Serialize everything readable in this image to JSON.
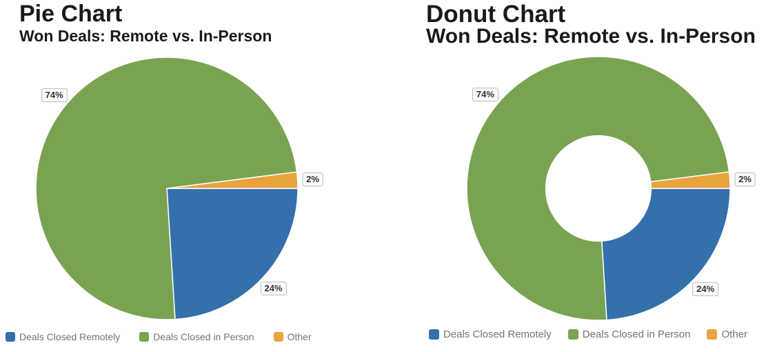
{
  "chart_data": [
    {
      "type": "pie",
      "title": "Pie Chart",
      "subtitle": "Won Deals: Remote vs. In-Person",
      "categories": [
        "Deals Closed Remotely",
        "Deals Closed in Person",
        "Other"
      ],
      "values": [
        24,
        74,
        2
      ],
      "data_labels": [
        "24%",
        "74%",
        "2%"
      ],
      "colors": [
        "#3370ac",
        "#79a351",
        "#e8a33d"
      ],
      "slice_border_color": "#ffffff",
      "start_angle_deg": 90,
      "inner_radius_ratio": 0,
      "unit": "%",
      "legend_position": "bottom"
    },
    {
      "type": "donut",
      "title": "Donut Chart",
      "subtitle": "Won Deals: Remote vs. In-Person",
      "categories": [
        "Deals Closed Remotely",
        "Deals Closed in Person",
        "Other"
      ],
      "values": [
        24,
        74,
        2
      ],
      "data_labels": [
        "24%",
        "74%",
        "2%"
      ],
      "colors": [
        "#3370ac",
        "#79a351",
        "#e8a33d"
      ],
      "slice_border_color": "#ffffff",
      "start_angle_deg": 90,
      "inner_radius_ratio": 0.4,
      "unit": "%",
      "legend_position": "bottom"
    }
  ],
  "styles": {
    "background": "#ffffff",
    "title_color": "#1a1a1a",
    "data_label_text_color": "#333333",
    "data_label_border_color": "#bdbdbd",
    "data_label_bg_color": "#f9f9f9",
    "legend_text_color": "#737373"
  }
}
